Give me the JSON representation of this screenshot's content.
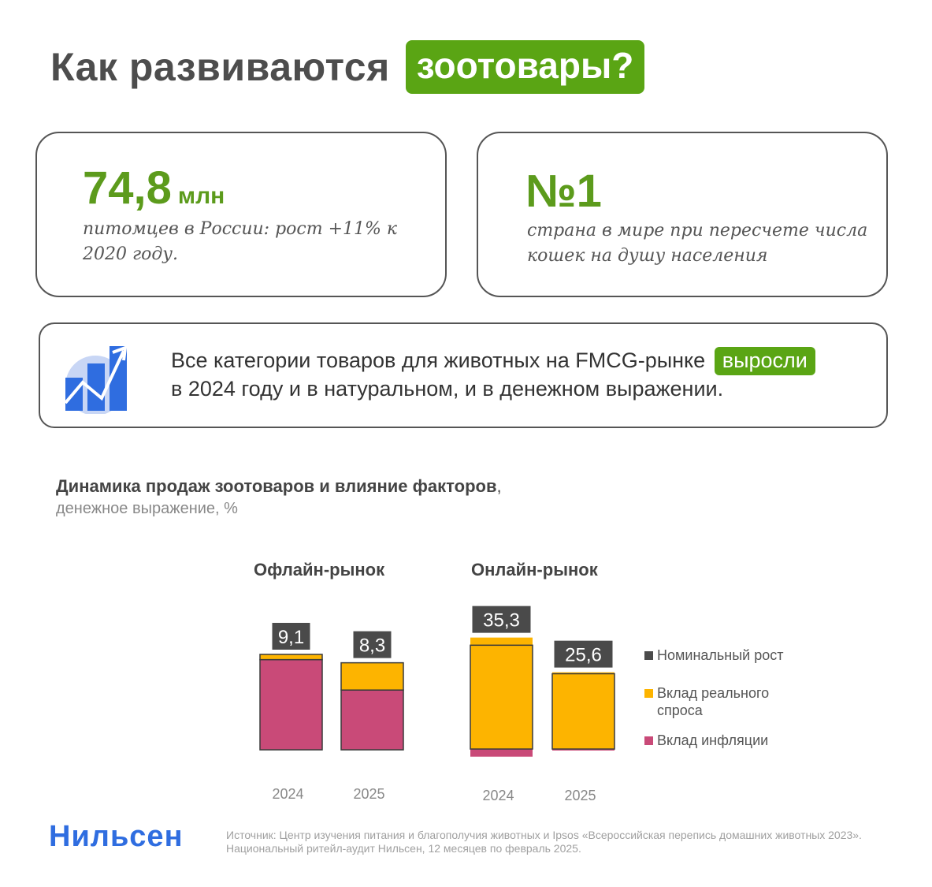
{
  "header": {
    "title_plain": "Как развиваются",
    "title_highlight": "зоотовары?"
  },
  "card1": {
    "number": "74,8",
    "unit": "млн",
    "text": "питомцев в России: рост +11% к 2020 году."
  },
  "card2": {
    "number": "№1",
    "text": "страна в мире при пересчете числа кошек на душу населения"
  },
  "banner": {
    "text_before": "Все категории товаров для животных на FMCG-рынке",
    "highlight": "выросли",
    "text_after": "в 2024 году и в натуральном, и в денежном выражении.",
    "icon": "growth-chart-icon"
  },
  "section": {
    "title_bold": "Динамика продаж зоотоваров и влияние факторов",
    "title_comma": ",",
    "subtitle": "денежное выражение, %"
  },
  "colors": {
    "green": "#5aa514",
    "number_green": "#5c9b1c",
    "inflation": "#c94a78",
    "real": "#fdb400",
    "nominal": "#4a4a4a",
    "logo_blue": "#2f6de0"
  },
  "chart_data": {
    "type": "bar",
    "stacked": true,
    "groups": [
      {
        "title": "Офлайн-рынок",
        "categories": [
          "2024",
          "2025"
        ],
        "series": [
          {
            "name": "Вклад инфляции",
            "values": [
              8.6,
              5.7
            ]
          },
          {
            "name": "Вклад реального спроса",
            "values": [
              0.5,
              2.6
            ]
          }
        ],
        "totals": [
          9.1,
          8.3
        ],
        "total_labels": [
          "9,1",
          "8,3"
        ]
      },
      {
        "title": "Онлайн-рынок",
        "categories": [
          "2024",
          "2025"
        ],
        "series": [
          {
            "name": "Вклад инфляции",
            "values": [
              -2.6,
              -0.5
            ]
          },
          {
            "name": "Вклад реального спроса",
            "values": [
              37.9,
              26.1
            ]
          }
        ],
        "totals": [
          35.3,
          25.6
        ],
        "total_labels": [
          "35,3",
          "25,6"
        ]
      }
    ],
    "legend": [
      "Номинальный рост",
      "Вклад реального спроса",
      "Вклад инфляции"
    ],
    "legend_position": "right"
  },
  "footer": {
    "logo": "Нильсен",
    "source_line1": "Источник: Центр изучения питания и благополучия животных и Ipsos «Всероссийская перепись домашних животных 2023».",
    "source_line2": "Национальный ритейл-аудит Нильсен, 12 месяцев по февраль 2025."
  }
}
